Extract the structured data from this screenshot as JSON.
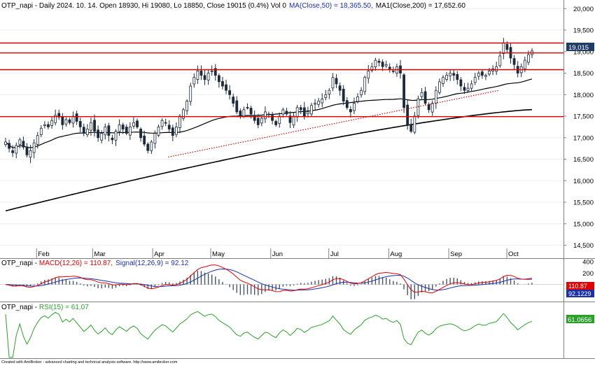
{
  "price_header": "OTP_napi - Daily 2024. 10. 14. Open 18930, Hi 19080, Lo 18850, Close 19015 (0.4%) Vol 0",
  "ma50_header": "MA(Close,50) = 18,365.50,",
  "ma200_header": "MA1(Close,200) = 17,652.60",
  "macd_header_prefix": "OTP_napi - ",
  "macd_header_macd": "MACD(12,26) = 110.87,",
  "macd_header_signal": "Signal(12,26,9) = 92.12",
  "rsi_header_prefix": "OTP_napi - ",
  "rsi_header_rsi": "RSI(15) = 61.07",
  "footer": "Created with AmiBroker - advanced charting and technical analysis software. http://www.amibroker.com",
  "price_badge": "19,015",
  "macd_badge": "110.87",
  "signal_badge": "92.1229",
  "rsi_badge": "61.0656",
  "colors": {
    "candle_up": "#ffffff",
    "candle_down": "#1c2a3a",
    "ma50": "#000000",
    "ma200": "#000000",
    "hlines": "#e00000",
    "trendline": "#d00000",
    "macd": "#e00000",
    "signal": "#1a2fa8",
    "histogram": "#44546a",
    "rsi": "#2aa02a",
    "badge_price": "#1f3b66",
    "badge_macd": "#e00000",
    "badge_signal": "#1a2fa8",
    "badge_rsi": "#2aa02a"
  },
  "chart_data": [
    {
      "type": "candlestick",
      "title": "OTP_napi - Daily 2024. 10. 14.",
      "x_axis": {
        "type": "date",
        "range": [
          "2024-01-16",
          "2024-10-14"
        ],
        "tick_labels": [
          "Feb",
          "Mar",
          "Apr",
          "May",
          "Jun",
          "Jul",
          "Aug",
          "Sep",
          "Oct"
        ]
      },
      "y_axis": {
        "position": "right",
        "range": [
          14200,
          20200
        ],
        "ticks": [
          14500,
          15000,
          15500,
          16000,
          16500,
          17000,
          17500,
          18000,
          18500,
          19000,
          19500,
          20000
        ],
        "tick_labels": [
          "14,500",
          "15,000",
          "15,500",
          "16,000",
          "16,500",
          "17,000",
          "17,500",
          "18,000",
          "18,500",
          "19,000",
          "19,500",
          "20,000"
        ]
      },
      "last_bar": {
        "open": 18930,
        "high": 19080,
        "low": 18850,
        "close": 19015,
        "change_pct": 0.4,
        "volume": 0
      },
      "close_series": [
        16900,
        16750,
        16650,
        16820,
        16950,
        16780,
        16600,
        16700,
        16880,
        17050,
        17220,
        17300,
        17250,
        17400,
        17520,
        17480,
        17300,
        17420,
        17350,
        17500,
        17380,
        17250,
        17100,
        17200,
        17350,
        17150,
        17000,
        17100,
        17250,
        17050,
        16950,
        17150,
        17300,
        17200,
        17100,
        17250,
        17350,
        17250,
        17000,
        16850,
        16700,
        16900,
        17100,
        17250,
        17400,
        17350,
        17200,
        17050,
        17250,
        17500,
        17650,
        17850,
        18200,
        18400,
        18550,
        18450,
        18350,
        18500,
        18550,
        18450,
        18300,
        18200,
        18100,
        18000,
        17800,
        17600,
        17500,
        17650,
        17700,
        17550,
        17400,
        17300,
        17450,
        17600,
        17550,
        17400,
        17300,
        17500,
        17650,
        17550,
        17350,
        17500,
        17700,
        17650,
        17500,
        17600,
        17750,
        17800,
        17850,
        17900,
        18000,
        18100,
        18400,
        18250,
        18100,
        17850,
        17700,
        17600,
        17800,
        17950,
        18100,
        18400,
        18550,
        18650,
        18800,
        18750,
        18650,
        18700,
        18600,
        18550,
        18650,
        18500,
        17700,
        17300,
        17150,
        17500,
        17900,
        18050,
        17800,
        17650,
        17800,
        18100,
        18300,
        18400,
        18450,
        18500,
        18450,
        18350,
        18200,
        18100,
        18150,
        18250,
        18400,
        18500,
        18450,
        18450,
        18550,
        18600,
        18650,
        18900,
        19200,
        19050,
        18850,
        18700,
        18500,
        18650,
        18800,
        18930,
        19015
      ],
      "overlays": [
        {
          "name": "MA(Close,50)",
          "last_value": 18365.5
        },
        {
          "name": "MA1(Close,200)",
          "last_value": 17652.6
        }
      ],
      "horizontal_levels": [
        19200,
        18970,
        18580,
        17490
      ],
      "trendline": {
        "start": {
          "date": "2024-04-09",
          "value": 16550
        },
        "end": {
          "date": "2024-09-27",
          "value": 18100
        }
      }
    },
    {
      "type": "line",
      "title": "MACD(12,26)",
      "y_axis": {
        "position": "right",
        "range": [
          -300,
          450
        ],
        "ticks": [
          200,
          400
        ],
        "tick_labels": [
          "200",
          "400"
        ]
      },
      "series": [
        {
          "name": "MACD(12,26)",
          "last_value": 110.87
        },
        {
          "name": "Signal(12,26,9)",
          "last_value": 92.12
        }
      ]
    },
    {
      "type": "line",
      "title": "RSI(15)",
      "y_axis": {
        "position": "right",
        "range": [
          15,
          85
        ]
      },
      "series": [
        {
          "name": "RSI(15)",
          "last_value": 61.07
        }
      ]
    }
  ]
}
